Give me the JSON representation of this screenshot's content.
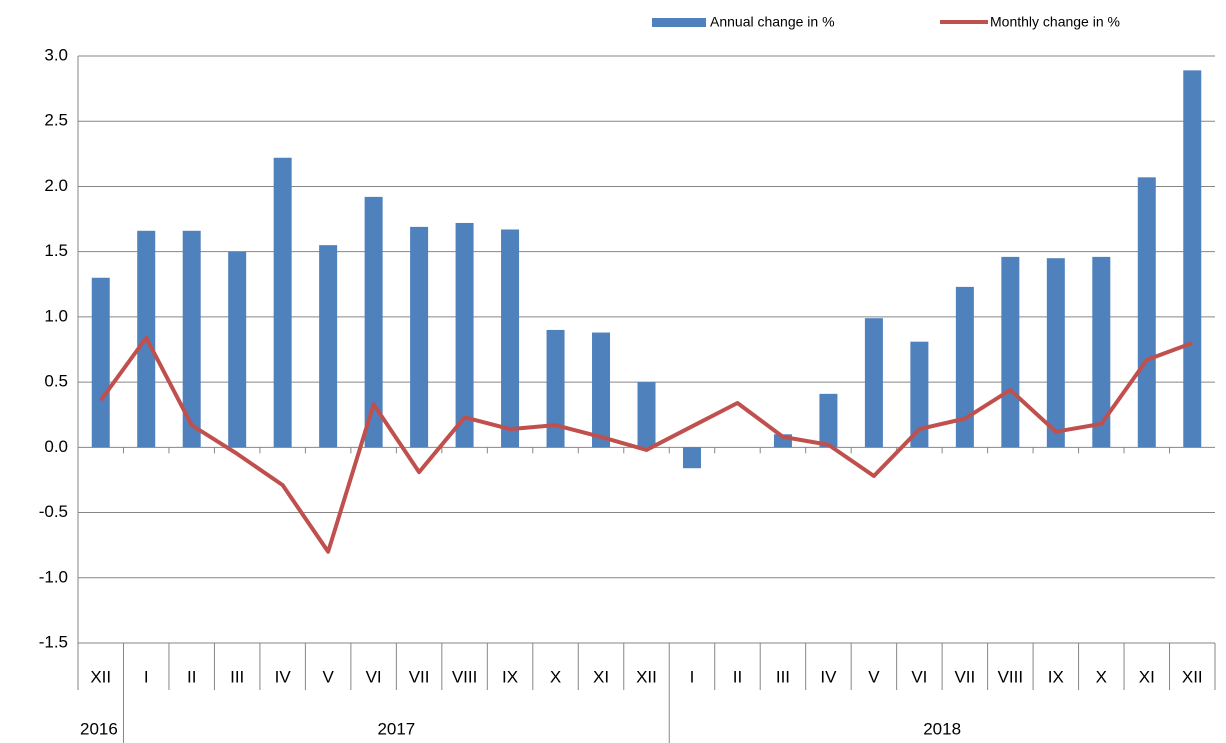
{
  "chart_data": {
    "type": "bar_line",
    "categories": [
      "XII",
      "I",
      "II",
      "III",
      "IV",
      "V",
      "VI",
      "VII",
      "VIII",
      "IX",
      "X",
      "XI",
      "XII",
      "I",
      "II",
      "III",
      "IV",
      "V",
      "VI",
      "VII",
      "VIII",
      "IX",
      "X",
      "XI",
      "XII"
    ],
    "years": [
      "2016",
      "2017",
      null,
      null,
      null,
      null,
      null,
      null,
      null,
      null,
      null,
      null,
      null,
      "2018",
      null,
      null,
      null,
      null,
      null,
      null,
      null,
      null,
      null,
      null,
      null
    ],
    "series": [
      {
        "name": "Annual change in %",
        "type": "bar",
        "color": "#4f81bd",
        "values": [
          1.3,
          1.66,
          1.66,
          1.5,
          2.22,
          1.55,
          1.92,
          1.69,
          1.72,
          1.67,
          0.9,
          0.88,
          0.5,
          -0.16,
          0.0,
          0.1,
          0.41,
          0.99,
          0.81,
          1.23,
          1.46,
          1.45,
          1.46,
          2.07,
          2.89
        ]
      },
      {
        "name": "Monthly change in %",
        "type": "line",
        "color": "#c0504d",
        "values": [
          0.36,
          0.84,
          0.17,
          -0.05,
          -0.29,
          -0.8,
          0.33,
          -0.19,
          0.23,
          0.14,
          0.17,
          0.08,
          -0.02,
          0.16,
          0.34,
          0.08,
          0.02,
          -0.22,
          0.14,
          0.22,
          0.44,
          0.12,
          0.18,
          0.67,
          0.8
        ]
      }
    ],
    "ylim": [
      -1.5,
      3.0
    ],
    "yticks": [
      {
        "value": 3,
        "label": "3.0"
      },
      2.5,
      {
        "value": 2,
        "label": "2.0"
      },
      1.5,
      {
        "value": 1,
        "label": "1.0"
      },
      0.5,
      {
        "value": 0,
        "label": "0.0"
      },
      -0.5,
      {
        "value": -1,
        "label": "-1.0"
      },
      -1.5
    ],
    "grid": true,
    "legend": "top-right"
  }
}
